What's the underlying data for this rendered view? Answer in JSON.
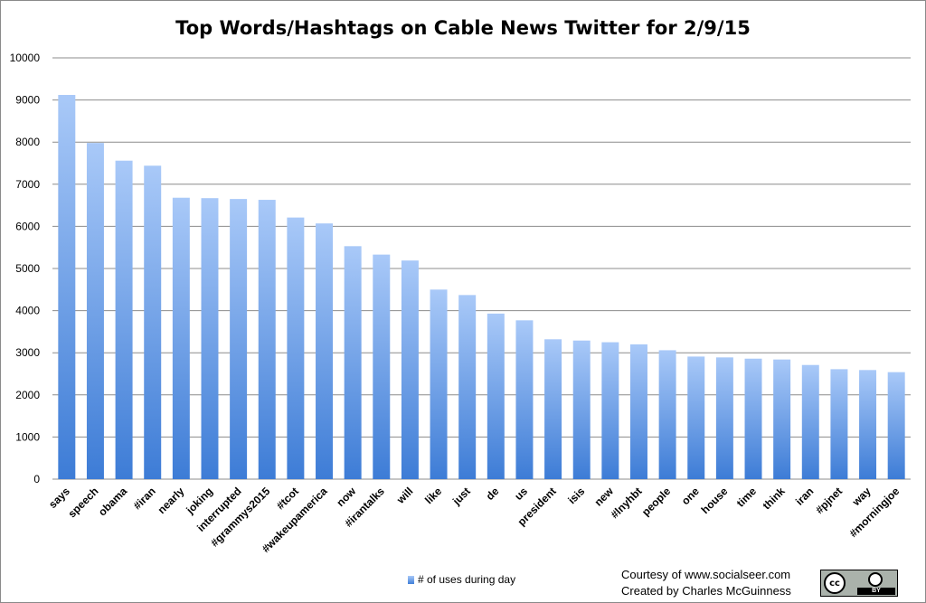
{
  "chart_data": {
    "type": "bar",
    "title": "Top Words/Hashtags on Cable News Twitter for 2/9/15",
    "xlabel": "",
    "ylabel": "",
    "ylim": [
      0,
      10000
    ],
    "yticks": [
      0,
      1000,
      2000,
      3000,
      4000,
      5000,
      6000,
      7000,
      8000,
      9000,
      10000
    ],
    "grid": true,
    "legend_position": "bottom",
    "categories": [
      "says",
      "speech",
      "obama",
      "#iran",
      "nearly",
      "joking",
      "interrupted",
      "#grammys2015",
      "#tcot",
      "#wakeupamerica",
      "now",
      "#irantalks",
      "will",
      "like",
      "just",
      "de",
      "us",
      "president",
      "isis",
      "new",
      "#lnyhbt",
      "people",
      "one",
      "house",
      "time",
      "think",
      "iran",
      "#pjnet",
      "way",
      "#morningjoe"
    ],
    "series": [
      {
        "name": "# of uses during day",
        "color": "#5b93e6",
        "values": [
          9120,
          7980,
          7560,
          7440,
          6680,
          6670,
          6650,
          6630,
          6210,
          6070,
          5530,
          5330,
          5190,
          4500,
          4370,
          3930,
          3770,
          3320,
          3290,
          3250,
          3200,
          3060,
          2910,
          2890,
          2860,
          2840,
          2710,
          2610,
          2590,
          2540
        ]
      }
    ]
  },
  "credits": {
    "line1": "Courtesy of www.socialseer.com",
    "line2": "Created by Charles McGuinness"
  },
  "license": {
    "cc_mark": "cc",
    "by_text": "BY"
  }
}
